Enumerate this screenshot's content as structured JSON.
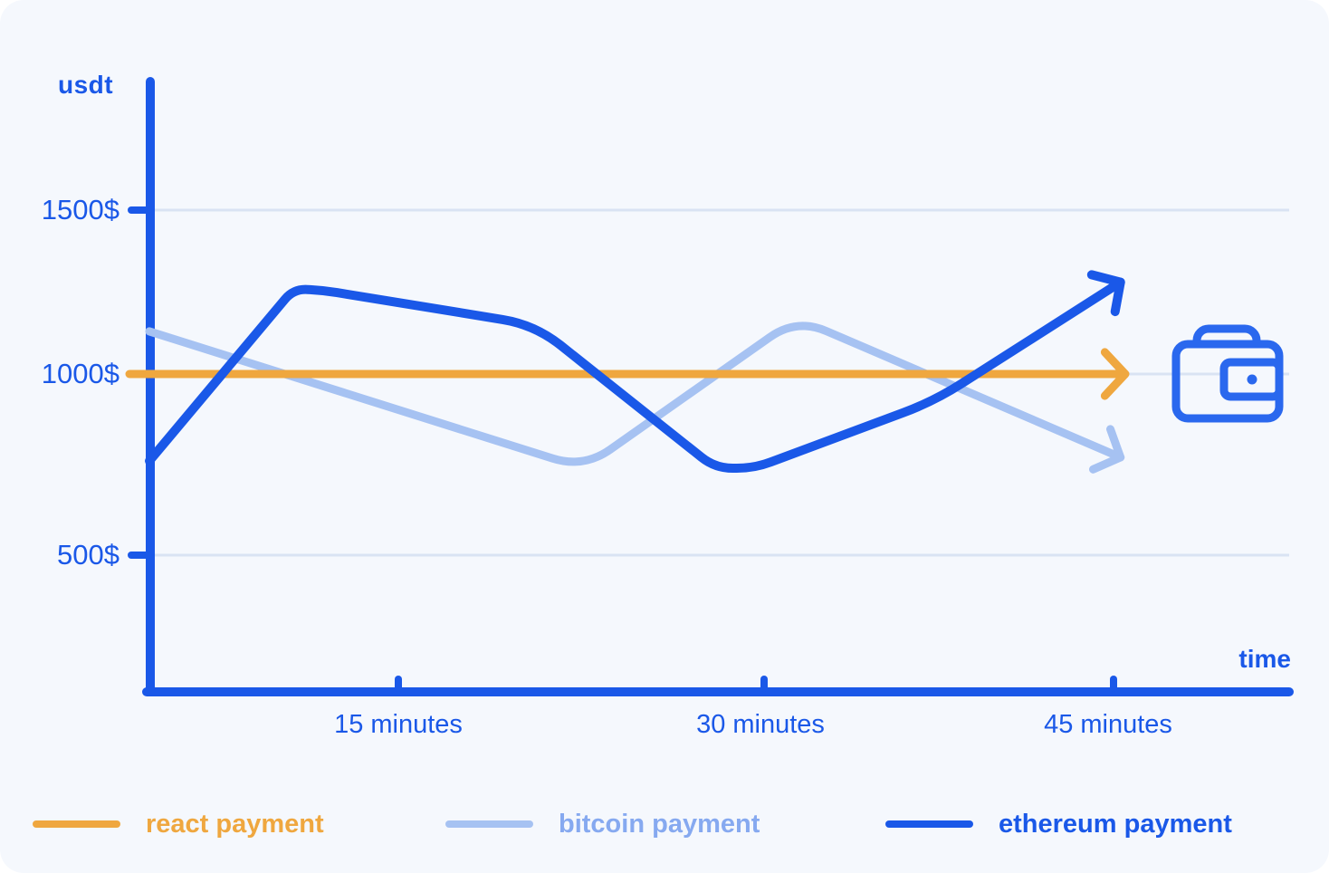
{
  "chart_data": {
    "type": "line",
    "title": "",
    "xlabel": "time",
    "ylabel": "usdt",
    "x_unit": "minutes",
    "y_unit": "USD",
    "xlim": [
      0,
      50
    ],
    "ylim": [
      0,
      1750
    ],
    "grid": "horizontal",
    "legend_position": "bottom",
    "y_ticks": [
      {
        "label": "1500$",
        "value": 1500
      },
      {
        "label": "1000$",
        "value": 1000
      },
      {
        "label": "500$",
        "value": 500
      }
    ],
    "x_ticks": [
      {
        "label": "15 minutes",
        "value": 15
      },
      {
        "label": "30 minutes",
        "value": 30
      },
      {
        "label": "45 minutes",
        "value": 45
      }
    ],
    "series": [
      {
        "name": "bitcoin payment",
        "color": "#a6c2f2",
        "arrow": "down-right",
        "points": [
          [
            0,
            1130
          ],
          [
            22.6,
            740
          ],
          [
            31.4,
            1170
          ],
          [
            45.3,
            770
          ]
        ]
      },
      {
        "name": "react payment",
        "color": "#efa73f",
        "arrow": "right",
        "extends_to_axis_tick": true,
        "points": [
          [
            0,
            1000
          ],
          [
            45.5,
            1000
          ]
        ]
      },
      {
        "name": "ethereum payment",
        "color": "#1a58e8",
        "arrow": "up-right",
        "points": [
          [
            0,
            760
          ],
          [
            8.7,
            1260
          ],
          [
            10.5,
            1255
          ],
          [
            20.6,
            1150
          ],
          [
            28,
            740
          ],
          [
            29.6,
            740
          ],
          [
            37.3,
            925
          ],
          [
            45.3,
            1280
          ]
        ]
      }
    ]
  },
  "legend": [
    {
      "label": "react payment",
      "color": "#efa73f",
      "text_color": "#efa73f"
    },
    {
      "label": "bitcoin payment",
      "color": "#a6c2f2",
      "text_color": "#86a9f0"
    },
    {
      "label": "ethereum payment",
      "color": "#1a58e8",
      "text_color": "#1a58e8"
    }
  ],
  "icons": {
    "wallet": "wallet-icon"
  },
  "colors": {
    "axis_blue": "#1a58e8",
    "orange": "#efa73f",
    "light_blue": "#a6c2f2",
    "bitcoin_text": "#86a9f0",
    "wallet_blue": "#2a68ee",
    "grid": "#d9e3f3",
    "card_bg": "#f5f8fd"
  }
}
